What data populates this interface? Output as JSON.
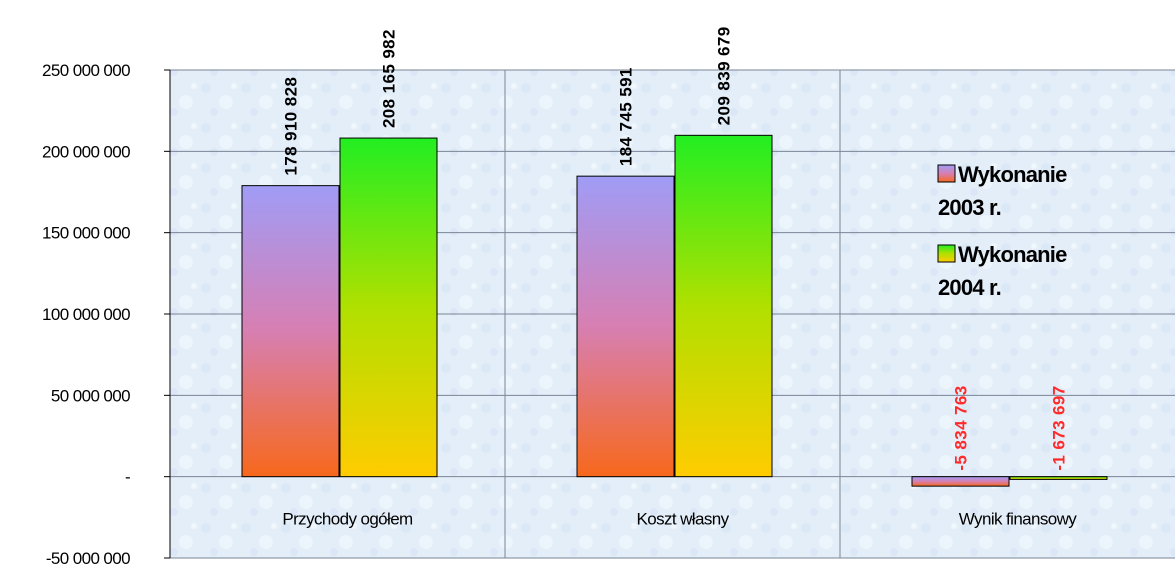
{
  "chart_data": {
    "type": "bar",
    "categories": [
      "Przychody ogółem",
      "Koszt własny",
      "Wynik finansowy"
    ],
    "series": [
      {
        "name_lines": [
          "Wykonanie",
          "2003 r."
        ],
        "values": [
          178910828,
          184745591,
          -5834763
        ],
        "labels": [
          "178 910 828",
          "184 745 591",
          "-5 834 763"
        ],
        "gradient": [
          "#a09cf6",
          "#d77fb2",
          "#f7681c"
        ]
      },
      {
        "name_lines": [
          "Wykonanie",
          "2004 r."
        ],
        "values": [
          208165982,
          209839679,
          -1673697
        ],
        "labels": [
          "208 165 982",
          "209 839 679",
          "-1 673 697"
        ],
        "gradient": [
          "#22ee22",
          "#b0e000",
          "#ffcc00"
        ]
      }
    ],
    "yticks": [
      {
        "value": 250000000,
        "label": "250 000 000"
      },
      {
        "value": 200000000,
        "label": "200 000 000"
      },
      {
        "value": 150000000,
        "label": "150 000 000"
      },
      {
        "value": 100000000,
        "label": "100 000 000"
      },
      {
        "value": 50000000,
        "label": "50 000 000"
      },
      {
        "value": 0,
        "label": "-"
      },
      {
        "value": -50000000,
        "label": "-50 000 000"
      }
    ],
    "ylim": [
      -50000000,
      250000000
    ],
    "grid": true,
    "legend_position": "right",
    "colors": {
      "positive_label": "#000000",
      "negative_label": "#ff2a2a",
      "plot_background": "#e6f0fa",
      "gridline": "#7a8596"
    }
  }
}
